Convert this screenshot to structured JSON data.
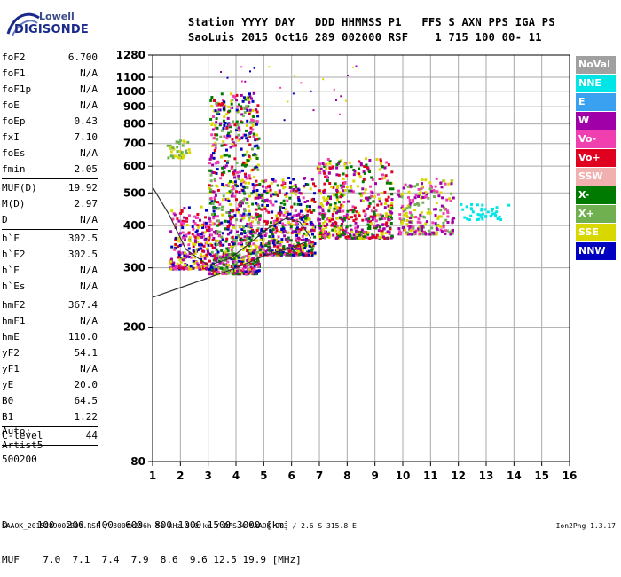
{
  "logo": {
    "line1": "Lowell",
    "line2": "DIGISONDE"
  },
  "header": {
    "line1": "Station YYYY DAY   DDD HHMMSS P1   FFS S AXN PPS IGA PS",
    "line2": "SaoLuis 2015 Oct16 289 002000 RSF    1 715 100 00- 11"
  },
  "params": [
    {
      "name": "foF2",
      "value": "6.700"
    },
    {
      "name": "foF1",
      "value": "N/A"
    },
    {
      "name": "foF1p",
      "value": "N/A"
    },
    {
      "name": "foE",
      "value": "N/A"
    },
    {
      "name": "foEp",
      "value": "0.43"
    },
    {
      "name": "fxI",
      "value": "7.10"
    },
    {
      "name": "foEs",
      "value": "N/A"
    },
    {
      "name": "fmin",
      "value": "2.05"
    },
    {
      "divider": true
    },
    {
      "name": "MUF(D)",
      "value": "19.92"
    },
    {
      "name": "M(D)",
      "value": "2.97"
    },
    {
      "name": "D",
      "value": "N/A"
    },
    {
      "divider": true
    },
    {
      "name": "h`F",
      "value": "302.5"
    },
    {
      "name": "h`F2",
      "value": "302.5"
    },
    {
      "name": "h`E",
      "value": "N/A"
    },
    {
      "name": "h`Es",
      "value": "N/A"
    },
    {
      "divider": true
    },
    {
      "name": "hmF2",
      "value": "367.4"
    },
    {
      "name": "hmF1",
      "value": "N/A"
    },
    {
      "name": "hmE",
      "value": "110.0"
    },
    {
      "name": "yF2",
      "value": "54.1"
    },
    {
      "name": "yF1",
      "value": "N/A"
    },
    {
      "name": "yE",
      "value": "20.0"
    },
    {
      "name": "B0",
      "value": "64.5"
    },
    {
      "name": "B1",
      "value": "1.22"
    },
    {
      "divider": true
    },
    {
      "name": "C-level",
      "value": "44"
    },
    {
      "divider": true
    }
  ],
  "auto": {
    "line1": "Auto:",
    "line2": "Artist5",
    "line3": "500200"
  },
  "legend": [
    {
      "label": "NoVal",
      "color": "#a0a0a0"
    },
    {
      "label": "NNE",
      "color": "#00e5e5"
    },
    {
      "label": "E",
      "color": "#3aa0f0"
    },
    {
      "label": "W",
      "color": "#a000a8"
    },
    {
      "label": "Vo-",
      "color": "#f040b0"
    },
    {
      "label": "Vo+",
      "color": "#e00020"
    },
    {
      "label": "SSW",
      "color": "#f0b0b0"
    },
    {
      "label": "X-",
      "color": "#007a00"
    },
    {
      "label": "X+",
      "color": "#70b050"
    },
    {
      "label": "SSE",
      "color": "#d8d800"
    },
    {
      "label": "NNW",
      "color": "#0000c0"
    }
  ],
  "bottom": {
    "d_row": "D     100  200  400  600  800 1000 1500 3000 [km]",
    "muf_row": "MUF    7.0  7.1  7.4  7.9  8.6  9.6 12.5 19.9 [MHz]"
  },
  "footer": {
    "left": "SAAOK_2015289002000.RSF / 300fx256h 50 kHz 5.0 km / DPS-4 SAAOK 903 / 2.6 S 315.8 E",
    "right": "Ion2Png 1.3.17"
  },
  "chart_data": {
    "type": "scatter",
    "xlabel": "",
    "ylabel": "",
    "xlim": [
      1,
      16
    ],
    "ylim": [
      80,
      1280
    ],
    "x_ticks": [
      1,
      2,
      3,
      4,
      5,
      6,
      7,
      8,
      9,
      10,
      11,
      12,
      13,
      14,
      15,
      16
    ],
    "y_ticks": [
      80,
      200,
      300,
      400,
      500,
      600,
      700,
      800,
      900,
      1000,
      1100,
      1280
    ],
    "grid": true,
    "y_scale": "log",
    "traces": [
      {
        "name": "model profile lower",
        "color": "#333333",
        "x": [
          1.0,
          2.0,
          3.0,
          4.0,
          5.0,
          6.0,
          6.7
        ],
        "y": [
          245,
          262,
          280,
          300,
          325,
          345,
          362
        ]
      },
      {
        "name": "model profile upper",
        "color": "#333333",
        "x": [
          1.0,
          1.6,
          2.2,
          3.0,
          3.8,
          4.5,
          5.2,
          5.8,
          6.3,
          6.7
        ],
        "y": [
          520,
          430,
          340,
          305,
          320,
          355,
          395,
          420,
          410,
          367
        ]
      }
    ],
    "clusters": [
      {
        "x": [
          1.6,
          3.0
        ],
        "y": [
          300,
          460
        ],
        "n": 260,
        "colors": [
          "#f040b0",
          "#a000a8",
          "#d8d800",
          "#e00020",
          "#0000c0"
        ]
      },
      {
        "x": [
          3.0,
          4.8
        ],
        "y": [
          290,
          1000
        ],
        "n": 900,
        "colors": [
          "#d8d800",
          "#a000a8",
          "#f040b0",
          "#0000c0",
          "#e00020",
          "#007a00",
          "#70b050"
        ]
      },
      {
        "x": [
          4.8,
          6.8
        ],
        "y": [
          330,
          560
        ],
        "n": 520,
        "colors": [
          "#d8d800",
          "#a000a8",
          "#f040b0",
          "#007a00",
          "#e00020",
          "#0000c0"
        ]
      },
      {
        "x": [
          6.9,
          9.6
        ],
        "y": [
          370,
          640
        ],
        "n": 520,
        "colors": [
          "#d8d800",
          "#a000a8",
          "#f040b0",
          "#e00020",
          "#007a00"
        ]
      },
      {
        "x": [
          9.8,
          11.8
        ],
        "y": [
          380,
          560
        ],
        "n": 240,
        "colors": [
          "#d8d800",
          "#a000a8",
          "#f040b0",
          "#70b050"
        ]
      },
      {
        "x": [
          12.0,
          13.8
        ],
        "y": [
          420,
          470
        ],
        "n": 40,
        "colors": [
          "#00e5e5"
        ]
      },
      {
        "x": [
          1.5,
          2.3
        ],
        "y": [
          640,
          720
        ],
        "n": 40,
        "colors": [
          "#d8d800",
          "#70b050"
        ]
      }
    ]
  }
}
